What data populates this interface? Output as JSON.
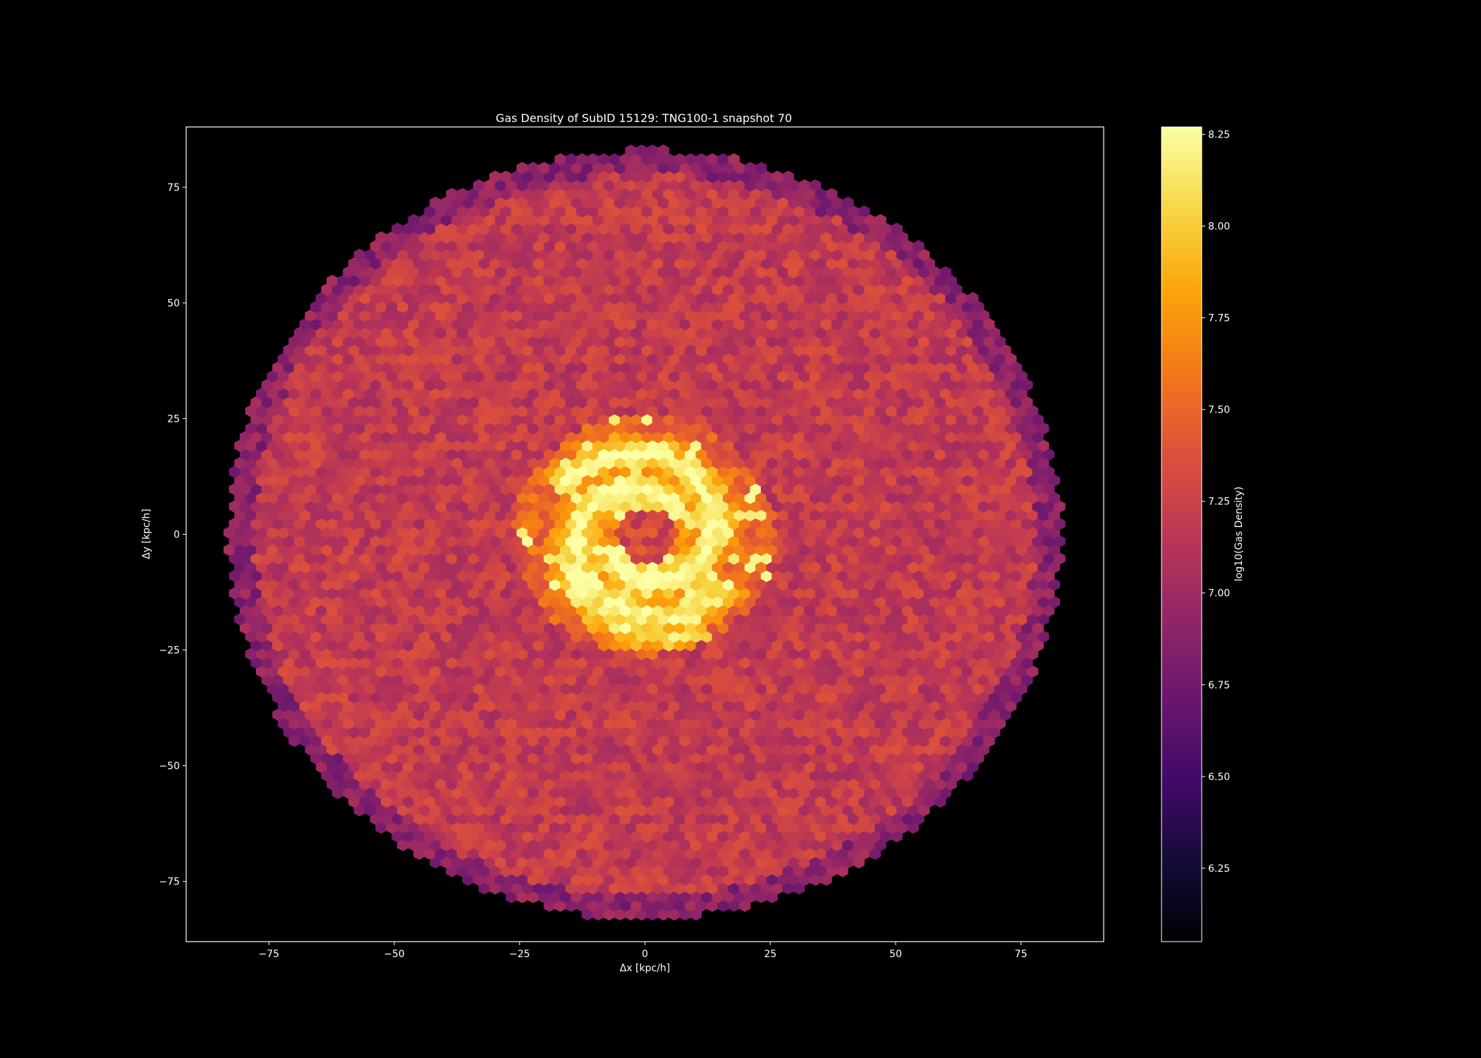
{
  "chart_data": {
    "type": "heatmap",
    "subtype": "hexbin",
    "title": "Gas Density of SubID 15129: TNG100-1 snapshot 70",
    "xlabel": "Δx [kpc/h]",
    "ylabel": "Δy [kpc/h]",
    "xlim": [
      -91.5,
      91.5
    ],
    "ylim": [
      -88,
      88
    ],
    "x_ticks": [
      -75,
      -50,
      -25,
      0,
      25,
      50,
      75
    ],
    "x_tick_labels": [
      "−75",
      "−50",
      "−25",
      "0",
      "25",
      "50",
      "75"
    ],
    "y_ticks": [
      -75,
      -50,
      -25,
      0,
      25,
      50,
      75
    ],
    "y_tick_labels": [
      "−75",
      "−50",
      "−25",
      "0",
      "25",
      "50",
      "75"
    ],
    "grid": false,
    "colormap": "inferno",
    "background": "#000000",
    "disk_radius": 83,
    "disk_value": 7.2,
    "outer_ring_value": 6.9,
    "core_hole_radius": 6,
    "core_hole_value": 7.3,
    "dense_region_radius": 26,
    "dense_value": 7.9,
    "peak_value": 8.25,
    "spiral_arms": [
      {
        "angle_start_deg": 20,
        "angle_end_deg": 330,
        "r_start": 7,
        "r_end": 20,
        "value": 7.95
      },
      {
        "angle_start_deg": 200,
        "angle_end_deg": 510,
        "r_start": 7,
        "r_end": 20,
        "value": 7.95
      },
      {
        "angle_start_deg": 110,
        "angle_end_deg": 300,
        "r_start": 9,
        "r_end": 24,
        "value": 7.85
      }
    ],
    "colorbar": {
      "label": "log10(Gas Density)",
      "range": [
        6.05,
        8.27
      ],
      "ticks": [
        6.25,
        6.5,
        6.75,
        7.0,
        7.25,
        7.5,
        7.75,
        8.0,
        8.25
      ],
      "tick_labels": [
        "6.25",
        "6.50",
        "6.75",
        "7.00",
        "7.25",
        "7.50",
        "7.75",
        "8.00",
        "8.25"
      ]
    }
  }
}
